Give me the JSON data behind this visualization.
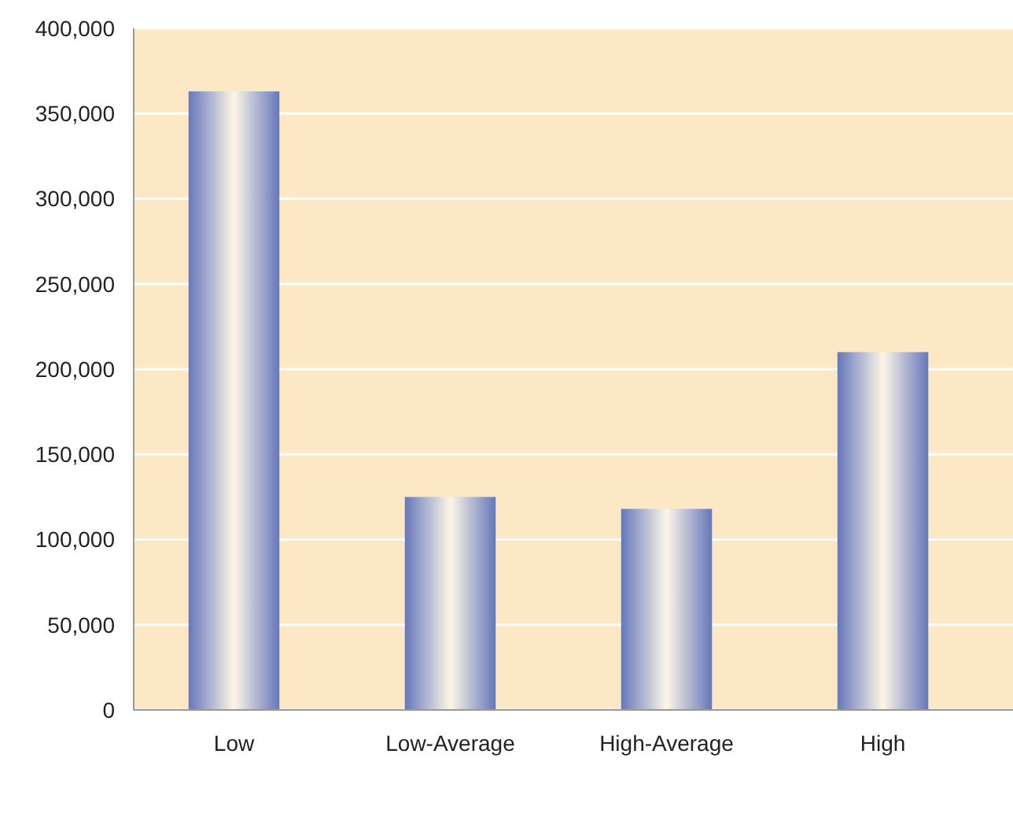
{
  "chart_data": {
    "type": "bar",
    "categories": [
      "Low",
      "Low-Average",
      "High-Average",
      "High"
    ],
    "values": [
      363000,
      125000,
      118000,
      210000
    ],
    "color": "#6677bb",
    "ylim": [
      0,
      400000
    ],
    "yticks": [
      {
        "value": 0,
        "label": "0"
      },
      {
        "value": 50000,
        "label": "50,000"
      },
      {
        "value": 100000,
        "label": "100,000"
      },
      {
        "value": 150000,
        "label": "150,000"
      },
      {
        "value": 200000,
        "label": "200,000"
      },
      {
        "value": 250000,
        "label": "250,000"
      },
      {
        "value": 300000,
        "label": "300,000"
      },
      {
        "value": 350000,
        "label": "350,000"
      },
      {
        "value": 400000,
        "label": "400,000"
      }
    ],
    "grid": "y"
  }
}
